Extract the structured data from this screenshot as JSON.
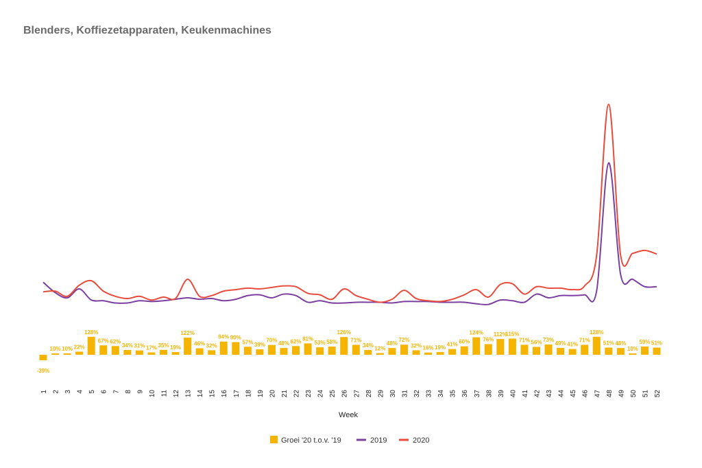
{
  "title": "Blenders, Koffiezetapparaten, Keukenmachines",
  "chart_data": {
    "type": "bar+line",
    "xlabel": "Week",
    "weeks": [
      1,
      2,
      3,
      4,
      5,
      6,
      7,
      8,
      9,
      10,
      11,
      12,
      13,
      14,
      15,
      16,
      17,
      18,
      19,
      20,
      21,
      22,
      23,
      24,
      25,
      26,
      27,
      28,
      29,
      30,
      31,
      32,
      33,
      34,
      35,
      36,
      37,
      38,
      39,
      40,
      41,
      42,
      43,
      44,
      45,
      46,
      47,
      48,
      49,
      50,
      51,
      52
    ],
    "growth_series": {
      "name": "Groei '20 t.o.v. '19",
      "color": "#f4b400",
      "values": [
        -39,
        10,
        10,
        22,
        128,
        67,
        62,
        34,
        31,
        17,
        35,
        19,
        122,
        46,
        32,
        94,
        90,
        57,
        39,
        70,
        48,
        62,
        81,
        53,
        58,
        126,
        71,
        34,
        12,
        48,
        72,
        32,
        16,
        19,
        41,
        60,
        124,
        76,
        112,
        115,
        71,
        56,
        73,
        49,
        41,
        71,
        128,
        51,
        48,
        10,
        59,
        51
      ],
      "labels": [
        "-39%",
        "10%",
        "10%",
        "22%",
        "128%",
        "67%",
        "62%",
        "34%",
        "31%",
        "17%",
        "35%",
        "19%",
        "122%",
        "46%",
        "32%",
        "94%",
        "90%",
        "57%",
        "39%",
        "70%",
        "48%",
        "62%",
        "81%",
        "53%",
        "58%",
        "126%",
        "71%",
        "34%",
        "12%",
        "48%",
        "72%",
        "32%",
        "16%",
        "19%",
        "41%",
        "60%",
        "124%",
        "76%",
        "112%",
        "115%",
        "71%",
        "56%",
        "73%",
        "49%",
        "41%",
        "71%",
        "128%",
        "51%",
        "48%",
        "10%",
        "59%",
        "51%"
      ]
    },
    "series": [
      {
        "name": "2019",
        "color": "#7b3fa0",
        "values": [
          34,
          20,
          13,
          25,
          10,
          9,
          6,
          6,
          9,
          8,
          9,
          11,
          13,
          11,
          12,
          9,
          11,
          16,
          17,
          13,
          18,
          16,
          7,
          9,
          6,
          6,
          7,
          7,
          7,
          6,
          8,
          8,
          8,
          7,
          7,
          7,
          5,
          4,
          10,
          9,
          7,
          18,
          13,
          16,
          16,
          17,
          22,
          195,
          44,
          38,
          28,
          28
        ]
      },
      {
        "name": "2020",
        "color": "#e84c3d",
        "values": [
          21,
          22,
          15,
          30,
          36,
          22,
          15,
          12,
          15,
          10,
          14,
          12,
          38,
          15,
          16,
          22,
          24,
          26,
          25,
          27,
          29,
          28,
          19,
          17,
          11,
          25,
          16,
          11,
          7,
          11,
          23,
          12,
          9,
          8,
          11,
          17,
          24,
          14,
          31,
          32,
          18,
          28,
          26,
          26,
          24,
          29,
          70,
          274,
          70,
          73,
          77,
          72
        ]
      }
    ],
    "legend": [
      "Groei '20 t.o.v. '19",
      "2019",
      "2020"
    ],
    "legend_position": "bottom"
  }
}
